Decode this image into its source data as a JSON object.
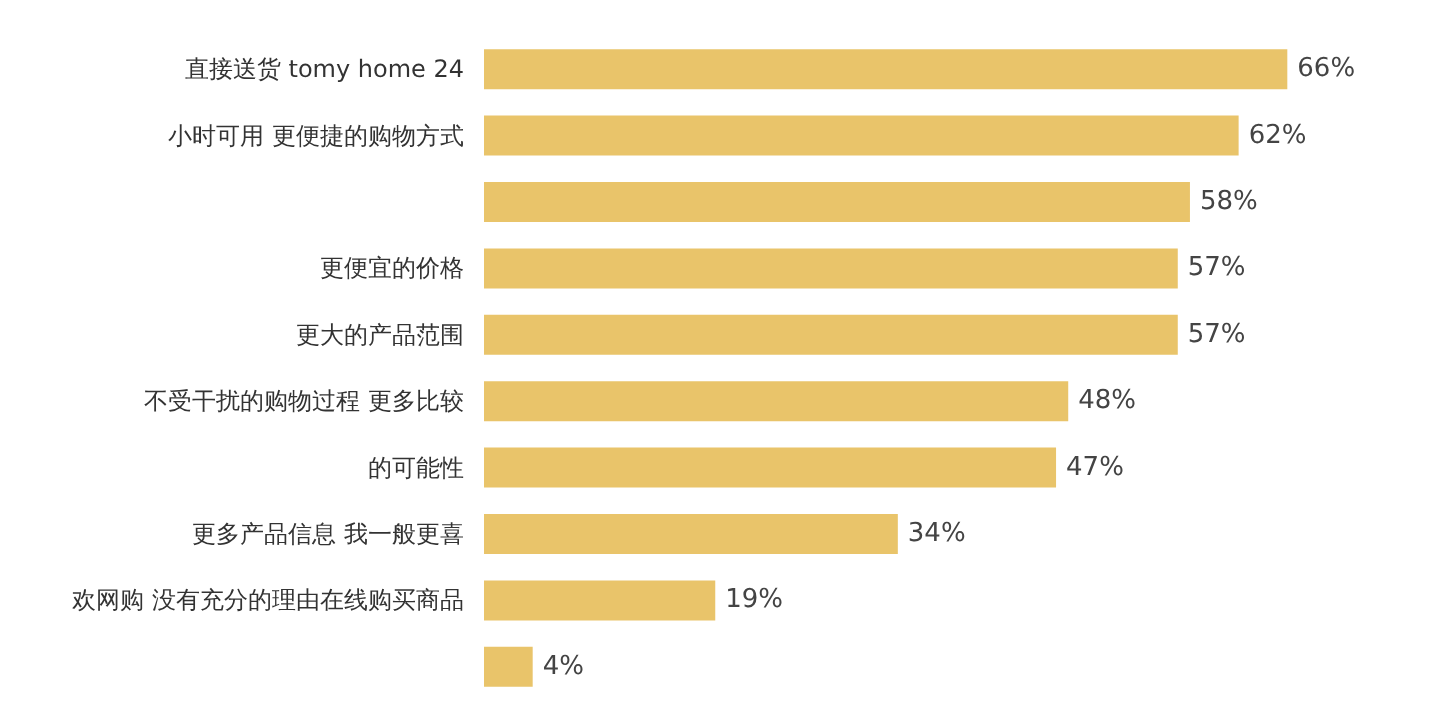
{
  "chart_data": {
    "type": "bar",
    "orientation": "horizontal",
    "categories": [
      "直接送货 tomy home 24",
      "小时可用 更便捷的购物方式",
      null,
      "更便宜的价格",
      "更大的产品范围",
      "不受干扰的购物过程 更多比较",
      "的可能性",
      "更多产品信息 我一般更喜",
      "欢网购 没有充分的理由在线购买商品",
      null
    ],
    "values": [
      66,
      62,
      58,
      57,
      57,
      48,
      47,
      34,
      19,
      4
    ],
    "value_labels": [
      "66%",
      "62%",
      "58%",
      "57%",
      "57%",
      "48%",
      "47%",
      "34%",
      "19%",
      "4%"
    ],
    "color": "#e9c46a",
    "grid": false
  }
}
